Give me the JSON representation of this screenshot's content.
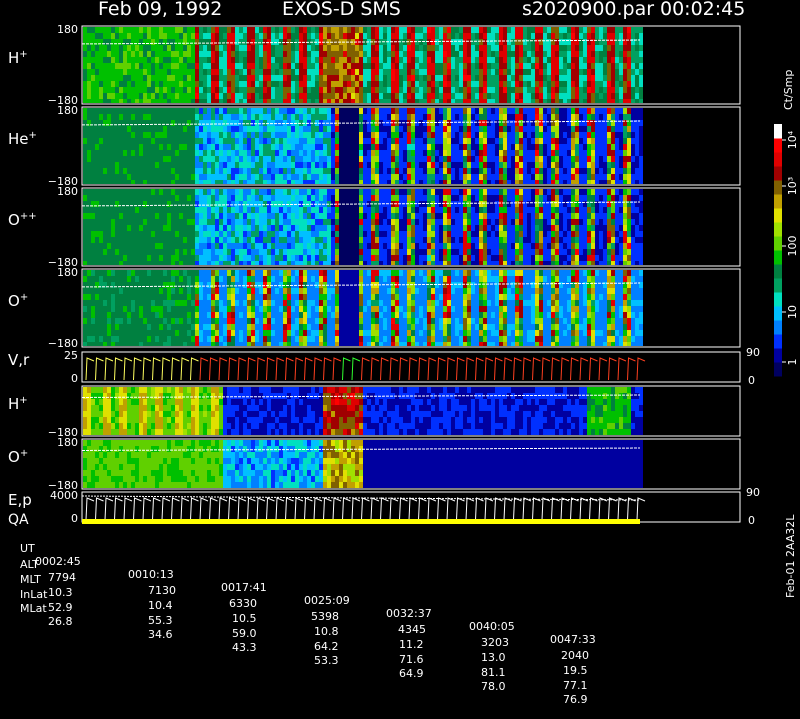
{
  "header": {
    "date": "Feb 09, 1992",
    "instrument": "EXOS-D SMS",
    "file": "s2020900.par",
    "time": "00:02:45"
  },
  "colorbar": {
    "unit": "Ct/Smp",
    "tick_labels": [
      "1",
      "10",
      "100",
      "10³",
      "10⁴"
    ],
    "colors": [
      "#000060",
      "#0000a0",
      "#0030ff",
      "#0080ff",
      "#00c0ff",
      "#00e0c0",
      "#00a060",
      "#008040",
      "#00c000",
      "#60d000",
      "#a0e000",
      "#e0e000",
      "#c0a000",
      "#806000",
      "#a00000",
      "#e00000",
      "#ff0000",
      "#ffffff"
    ]
  },
  "panels": [
    {
      "label": "H⁺",
      "label_base": "H",
      "label_sup": "+",
      "ymax": "180",
      "ymin": "−180",
      "kind": "spectro",
      "variant": 0
    },
    {
      "label": "He⁺",
      "label_base": "He",
      "label_sup": "+",
      "ymax": "180",
      "ymin": "−180",
      "kind": "spectro",
      "variant": 1
    },
    {
      "label": "O⁺⁺",
      "label_base": "O",
      "label_sup": "++",
      "ymax": "180",
      "ymin": "−180",
      "kind": "spectro",
      "variant": 2
    },
    {
      "label": "O⁺",
      "label_base": "O",
      "label_sup": "+",
      "ymax": "180",
      "ymin": "−180",
      "kind": "spectro",
      "variant": 3
    },
    {
      "label": "V,r",
      "label_base": "V,r",
      "label_sup": "",
      "ymax": "25",
      "ymin": "0",
      "right_top": "90",
      "right_bottom": "0",
      "kind": "line"
    },
    {
      "label": "H⁺",
      "label_base": "H",
      "label_sup": "+",
      "ymax": "",
      "ymin": "−180",
      "kind": "spectro",
      "variant": 4
    },
    {
      "label": "O⁺",
      "label_base": "O",
      "label_sup": "+",
      "ymax": "180",
      "ymin": "−180",
      "kind": "spectro",
      "variant": 5
    },
    {
      "label": "E,p",
      "label_base": "E,p",
      "label_sup": "",
      "ymax": "4000",
      "ymin": "0",
      "right_top": "90",
      "right_bottom": "0",
      "kind": "line"
    }
  ],
  "qa_label": "QA",
  "table": {
    "labels": [
      "UT",
      "ALT",
      "MLT",
      "InLat",
      "MLat"
    ],
    "rows": [
      [
        "0002:45",
        "0010:13",
        "0017:41",
        "0025:09",
        "0032:37",
        "0040:05",
        "0047:33"
      ],
      [
        "7794",
        "7130",
        "6330",
        "5398",
        "4345",
        "3203",
        "2040"
      ],
      [
        "10.3",
        "10.4",
        "10.5",
        "10.8",
        "11.2",
        "13.0",
        "19.5"
      ],
      [
        "52.9",
        "55.3",
        "59.0",
        "64.2",
        "71.6",
        "81.1",
        "77.1"
      ],
      [
        "26.8",
        "34.6",
        "43.3",
        "53.3",
        "64.9",
        "78.0",
        "76.9"
      ]
    ]
  },
  "footer_code": "Feb-01 2AA32L"
}
